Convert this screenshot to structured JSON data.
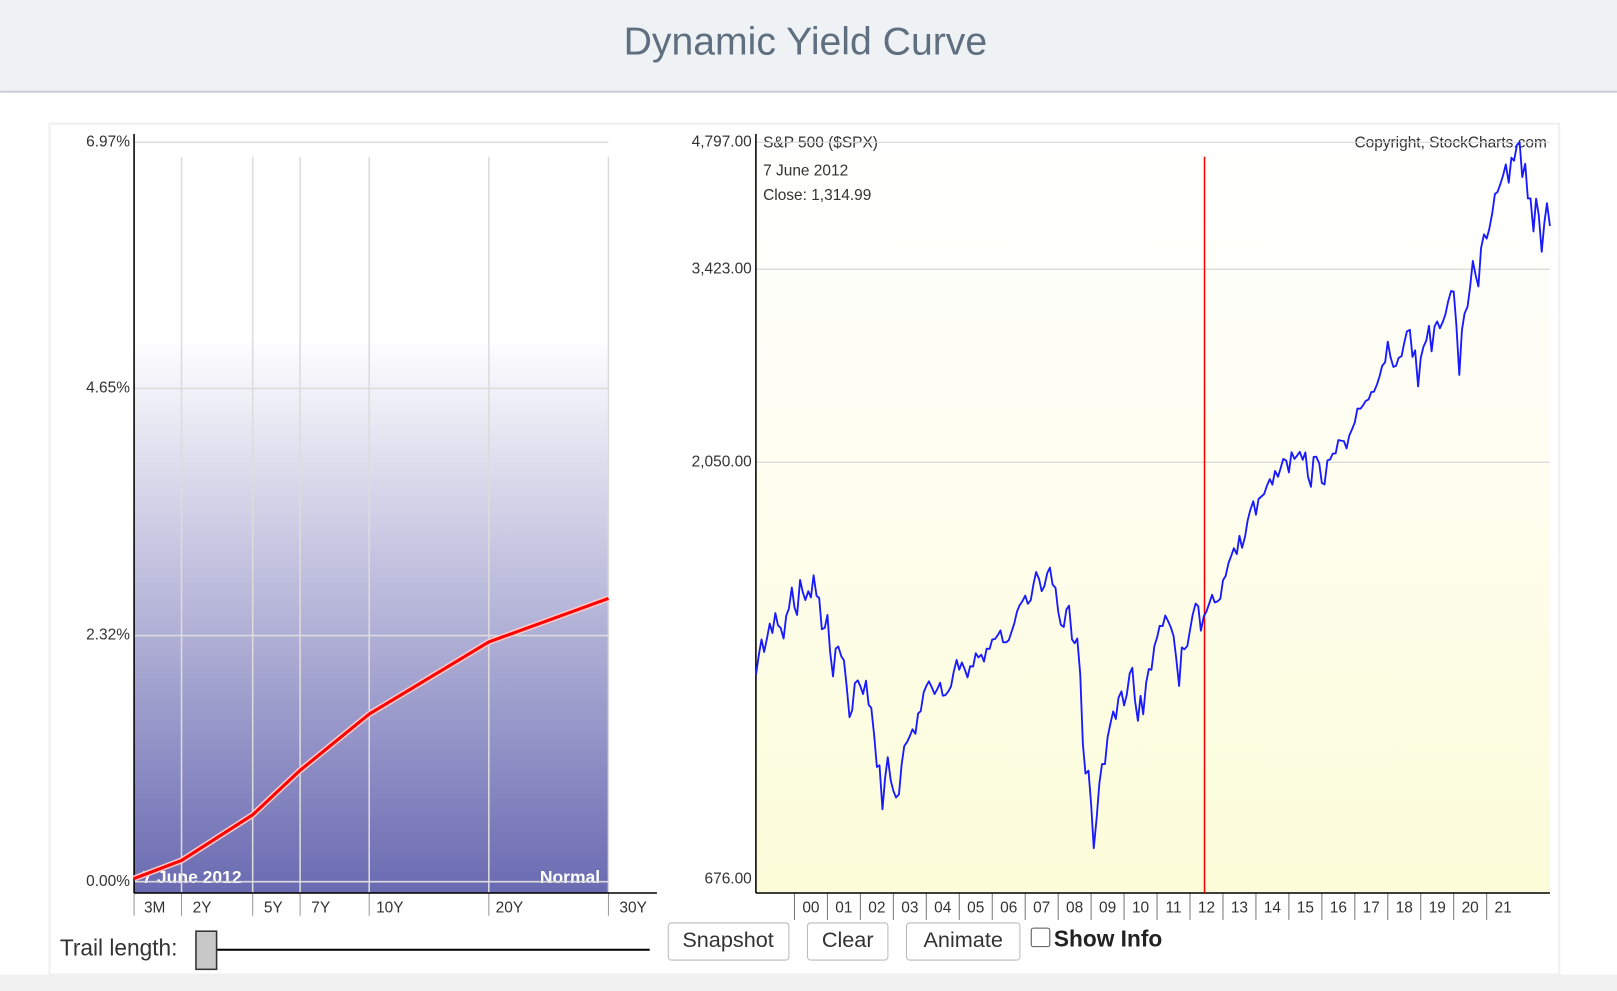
{
  "header": {
    "title": "Dynamic Yield Curve"
  },
  "chart_data": [
    {
      "type": "line",
      "categories": [
        "3M",
        "2Y",
        "5Y",
        "7Y",
        "10Y",
        "20Y",
        "30Y"
      ],
      "series": [
        {
          "color": "#ff0000",
          "values": [
            0.03,
            0.2,
            0.63,
            1.05,
            1.58,
            2.26,
            2.67
          ]
        }
      ],
      "ylim": [
        0,
        6.97
      ],
      "yticks": [
        {
          "value": 0,
          "label": "0.00%"
        },
        {
          "value": 2.32,
          "label": "2.32%"
        },
        {
          "value": 4.65,
          "label": "4.65%"
        },
        {
          "value": 6.97,
          "label": "6.97%"
        }
      ],
      "annotations": [
        "7 June 2012",
        "Normal"
      ],
      "grid": true
    },
    {
      "type": "line",
      "title": "S&P 500 ($SPX)",
      "annotations": [
        "Copyright, StockCharts.com",
        "7  June 2012",
        "Close: 1,314.99"
      ],
      "x": [
        1998.83,
        1998.92,
        1999,
        1999.08,
        1999.17,
        1999.25,
        1999.33,
        1999.42,
        1999.5,
        1999.58,
        1999.67,
        1999.75,
        1999.83,
        1999.92,
        2000,
        2000.08,
        2000.17,
        2000.25,
        2000.33,
        2000.42,
        2000.5,
        2000.58,
        2000.67,
        2000.75,
        2000.83,
        2000.92,
        2001,
        2001.08,
        2001.17,
        2001.25,
        2001.33,
        2001.42,
        2001.5,
        2001.58,
        2001.67,
        2001.75,
        2001.83,
        2001.92,
        2002,
        2002.08,
        2002.17,
        2002.25,
        2002.33,
        2002.42,
        2002.5,
        2002.58,
        2002.67,
        2002.75,
        2002.83,
        2002.92,
        2003,
        2003.08,
        2003.17,
        2003.25,
        2003.33,
        2003.42,
        2003.5,
        2003.58,
        2003.67,
        2003.75,
        2003.83,
        2003.92,
        2004,
        2004.08,
        2004.17,
        2004.25,
        2004.33,
        2004.42,
        2004.5,
        2004.58,
        2004.67,
        2004.75,
        2004.83,
        2004.92,
        2005,
        2005.08,
        2005.17,
        2005.25,
        2005.33,
        2005.42,
        2005.5,
        2005.58,
        2005.67,
        2005.75,
        2005.83,
        2005.92,
        2006,
        2006.08,
        2006.17,
        2006.25,
        2006.33,
        2006.42,
        2006.5,
        2006.58,
        2006.67,
        2006.75,
        2006.83,
        2006.92,
        2007,
        2007.08,
        2007.17,
        2007.25,
        2007.33,
        2007.42,
        2007.5,
        2007.58,
        2007.67,
        2007.75,
        2007.83,
        2007.92,
        2008,
        2008.08,
        2008.17,
        2008.25,
        2008.33,
        2008.42,
        2008.5,
        2008.58,
        2008.67,
        2008.75,
        2008.83,
        2008.92,
        2009,
        2009.08,
        2009.17,
        2009.25,
        2009.33,
        2009.42,
        2009.5,
        2009.58,
        2009.67,
        2009.75,
        2009.83,
        2009.92,
        2010,
        2010.08,
        2010.17,
        2010.25,
        2010.33,
        2010.42,
        2010.5,
        2010.58,
        2010.67,
        2010.75,
        2010.83,
        2010.92,
        2011,
        2011.08,
        2011.17,
        2011.25,
        2011.33,
        2011.42,
        2011.5,
        2011.58,
        2011.67,
        2011.75,
        2011.83,
        2011.92,
        2012,
        2012.08,
        2012.17,
        2012.25,
        2012.33,
        2012.42,
        2012.5,
        2012.58,
        2012.67,
        2012.75,
        2012.83,
        2012.92,
        2013,
        2013.08,
        2013.17,
        2013.25,
        2013.33,
        2013.42,
        2013.5,
        2013.58,
        2013.67,
        2013.75,
        2013.83,
        2013.92,
        2014,
        2014.08,
        2014.17,
        2014.25,
        2014.33,
        2014.42,
        2014.5,
        2014.58,
        2014.67,
        2014.75,
        2014.83,
        2014.92,
        2015,
        2015.08,
        2015.17,
        2015.25,
        2015.33,
        2015.42,
        2015.5,
        2015.58,
        2015.67,
        2015.75,
        2015.83,
        2015.92,
        2016,
        2016.08,
        2016.17,
        2016.25,
        2016.33,
        2016.42,
        2016.5,
        2016.58,
        2016.67,
        2016.75,
        2016.83,
        2016.92,
        2017,
        2017.08,
        2017.17,
        2017.25,
        2017.33,
        2017.42,
        2017.5,
        2017.58,
        2017.67,
        2017.75,
        2017.83,
        2017.92,
        2018,
        2018.08,
        2018.17,
        2018.25,
        2018.33,
        2018.42,
        2018.5,
        2018.58,
        2018.67,
        2018.75,
        2018.83,
        2018.92,
        2019,
        2019.08,
        2019.17,
        2019.25,
        2019.33,
        2019.42,
        2019.5,
        2019.58,
        2019.67,
        2019.75,
        2019.83,
        2019.92,
        2020,
        2020.08,
        2020.17,
        2020.25,
        2020.33,
        2020.42,
        2020.5,
        2020.58,
        2020.67,
        2020.75,
        2020.83,
        2020.92,
        2021,
        2021.08,
        2021.17,
        2021.25,
        2021.33,
        2021.42,
        2021.5,
        2021.58,
        2021.67,
        2021.75,
        2021.83,
        2021.92,
        2022,
        2022.08,
        2022.17,
        2022.25,
        2022.33,
        2022.42,
        2022.5,
        2022.58,
        2022.67,
        2022.75,
        2022.83,
        2022.92
      ],
      "series": [
        {
          "color": "#1a1aff",
          "values": [
            1164,
            1229,
            1280,
            1238,
            1286,
            1335,
            1302,
            1373,
            1329,
            1320,
            1283,
            1363,
            1389,
            1469,
            1394,
            1366,
            1499,
            1452,
            1421,
            1455,
            1431,
            1518,
            1437,
            1429,
            1315,
            1320,
            1366,
            1240,
            1160,
            1249,
            1256,
            1224,
            1211,
            1134,
            1041,
            1060,
            1139,
            1148,
            1130,
            1107,
            1147,
            1076,
            1067,
            990,
            912,
            916,
            815,
            886,
            936,
            880,
            856,
            841,
            848,
            917,
            964,
            975,
            990,
            1008,
            996,
            1051,
            1058,
            1112,
            1131,
            1145,
            1126,
            1107,
            1121,
            1141,
            1102,
            1104,
            1115,
            1130,
            1174,
            1212,
            1181,
            1204,
            1181,
            1157,
            1192,
            1191,
            1234,
            1220,
            1229,
            1207,
            1249,
            1248,
            1280,
            1281,
            1295,
            1311,
            1270,
            1270,
            1277,
            1304,
            1336,
            1378,
            1401,
            1418,
            1438,
            1407,
            1421,
            1482,
            1531,
            1503,
            1455,
            1474,
            1527,
            1549,
            1481,
            1468,
            1379,
            1331,
            1323,
            1386,
            1400,
            1280,
            1267,
            1283,
            1166,
            969,
            896,
            903,
            826,
            735,
            798,
            873,
            919,
            919,
            987,
            1021,
            1057,
            1036,
            1096,
            1115,
            1074,
            1104,
            1169,
            1187,
            1089,
            1031,
            1102,
            1049,
            1141,
            1183,
            1181,
            1258,
            1286,
            1327,
            1326,
            1364,
            1345,
            1321,
            1292,
            1219,
            1131,
            1253,
            1247,
            1258,
            1312,
            1366,
            1408,
            1398,
            1310,
            1362,
            1379,
            1407,
            1441,
            1412,
            1416,
            1426,
            1498,
            1515,
            1569,
            1598,
            1631,
            1606,
            1686,
            1633,
            1682,
            1757,
            1806,
            1848,
            1783,
            1859,
            1872,
            1884,
            1924,
            1960,
            1931,
            2003,
            1972,
            2018,
            2068,
            2059,
            1995,
            2105,
            2068,
            2086,
            2107,
            2063,
            2104,
            1972,
            1920,
            2079,
            2080,
            2044,
            1940,
            1932,
            2060,
            2065,
            2097,
            2099,
            2174,
            2171,
            2168,
            2126,
            2199,
            2239,
            2279,
            2364,
            2363,
            2384,
            2412,
            2423,
            2470,
            2472,
            2519,
            2575,
            2648,
            2674,
            2824,
            2714,
            2641,
            2648,
            2705,
            2718,
            2816,
            2902,
            2914,
            2712,
            2760,
            2507,
            2704,
            2784,
            2834,
            2946,
            2752,
            2942,
            2980,
            2926,
            2977,
            3038,
            3141,
            3231,
            3226,
            2954,
            2585,
            2912,
            3044,
            3100,
            3271,
            3500,
            3363,
            3270,
            3622,
            3756,
            3714,
            3811,
            3973,
            4181,
            4204,
            4298,
            4395,
            4523,
            4308,
            4605,
            4567,
            4766,
            4797,
            4374,
            4530,
            4132,
            4132,
            3785,
            4130,
            3955,
            3586,
            3872,
            4080,
            3840
          ]
        }
      ],
      "xlim": [
        1998.83,
        2022.92
      ],
      "ylim": [
        676,
        4797
      ],
      "log_y": true,
      "yticks": [
        {
          "value": 676,
          "label": "676.00"
        },
        {
          "value": 2050,
          "label": "2,050.00"
        },
        {
          "value": 3423,
          "label": "3,423.00"
        },
        {
          "value": 4797,
          "label": "4,797.00"
        }
      ],
      "xticks": [
        {
          "value": 2000,
          "label": "00"
        },
        {
          "value": 2001,
          "label": "01"
        },
        {
          "value": 2002,
          "label": "02"
        },
        {
          "value": 2003,
          "label": "03"
        },
        {
          "value": 2004,
          "label": "04"
        },
        {
          "value": 2005,
          "label": "05"
        },
        {
          "value": 2006,
          "label": "06"
        },
        {
          "value": 2007,
          "label": "07"
        },
        {
          "value": 2008,
          "label": "08"
        },
        {
          "value": 2009,
          "label": "09"
        },
        {
          "value": 2010,
          "label": "10"
        },
        {
          "value": 2011,
          "label": "11"
        },
        {
          "value": 2012,
          "label": "12"
        },
        {
          "value": 2013,
          "label": "13"
        },
        {
          "value": 2014,
          "label": "14"
        },
        {
          "value": 2015,
          "label": "15"
        },
        {
          "value": 2016,
          "label": "16"
        },
        {
          "value": 2017,
          "label": "17"
        },
        {
          "value": 2018,
          "label": "18"
        },
        {
          "value": 2019,
          "label": "19"
        },
        {
          "value": 2020,
          "label": "20"
        },
        {
          "value": 2021,
          "label": "21"
        }
      ],
      "marker_x": 2012.44,
      "marker_color": "#ff0000",
      "grid": true
    }
  ],
  "controls": {
    "trail_label": "Trail length:",
    "buttons": [
      "Snapshot",
      "Clear",
      "Animate"
    ],
    "checkbox": "Show Info"
  }
}
